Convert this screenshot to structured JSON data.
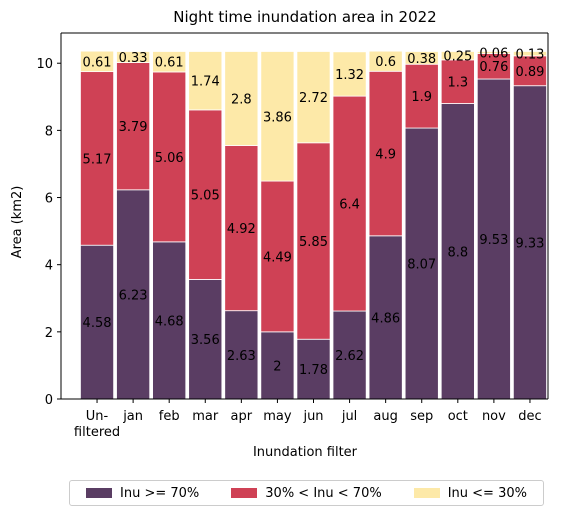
{
  "chart_data": {
    "type": "bar",
    "stacked": true,
    "title": "Night time inundation area in 2022",
    "xlabel": "Inundation filter",
    "ylabel": "Area (km2)",
    "ylim": [
      0,
      10.9
    ],
    "yticks": [
      0,
      2,
      4,
      6,
      8,
      10
    ],
    "categories": [
      "Un-\nfiltered",
      "jan",
      "feb",
      "mar",
      "apr",
      "may",
      "jun",
      "jul",
      "aug",
      "sep",
      "oct",
      "nov",
      "dec"
    ],
    "series": [
      {
        "name": "Inu >= 70%",
        "color": "#5a3d63",
        "values": [
          4.58,
          6.23,
          4.68,
          3.56,
          2.63,
          2,
          1.78,
          2.62,
          4.86,
          8.07,
          8.8,
          9.53,
          9.33
        ]
      },
      {
        "name": "30% < Inu < 70%",
        "color": "#cf4155",
        "values": [
          5.17,
          3.79,
          5.06,
          5.05,
          4.92,
          4.49,
          5.85,
          6.4,
          4.9,
          1.9,
          1.3,
          0.76,
          0.89
        ]
      },
      {
        "name": "Inu <= 30%",
        "color": "#fde9a8",
        "values": [
          0.61,
          0.33,
          0.61,
          1.74,
          2.8,
          3.86,
          2.72,
          1.32,
          0.6,
          0.38,
          0.25,
          0.06,
          0.13
        ]
      }
    ],
    "grid": false,
    "legend_position": "bottom"
  }
}
